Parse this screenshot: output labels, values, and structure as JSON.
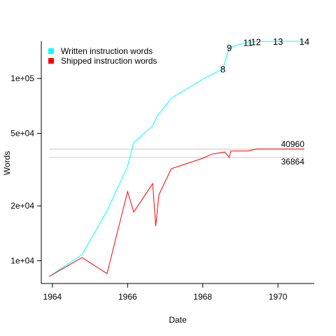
{
  "chart_data": {
    "type": "line",
    "title": "",
    "xlabel": "Date",
    "ylabel": "Words",
    "xlim": [
      "1963-09-15",
      "1970-12-20"
    ],
    "ylim": [
      7500,
      160000
    ],
    "yscale": "log",
    "x_ticks": [
      {
        "date": "1964-01-01",
        "label": "1964"
      },
      {
        "date": "1966-01-01",
        "label": "1966"
      },
      {
        "date": "1968-01-01",
        "label": "1968"
      },
      {
        "date": "1970-01-01",
        "label": "1970"
      }
    ],
    "y_ticks": [
      {
        "value": 10000,
        "label": "1e+04"
      },
      {
        "value": 20000,
        "label": "2e+04"
      },
      {
        "value": 50000,
        "label": "5e+04"
      },
      {
        "value": 100000,
        "label": "1e+05"
      }
    ],
    "grid": false,
    "legend": "top-left",
    "series": [
      {
        "name": "Written instruction words",
        "color": "#00ffff",
        "points": [
          {
            "x": "1963-12-01",
            "y": 8200
          },
          {
            "x": "1964-10-15",
            "y": 10800
          },
          {
            "x": "1965-06-15",
            "y": 18800
          },
          {
            "x": "1966-01-01",
            "y": 33000
          },
          {
            "x": "1966-03-01",
            "y": 44500
          },
          {
            "x": "1966-09-01",
            "y": 55000
          },
          {
            "x": "1966-10-15",
            "y": 62000
          },
          {
            "x": "1967-03-01",
            "y": 78000
          },
          {
            "x": "1968-01-15",
            "y": 100000
          },
          {
            "x": "1968-07-15",
            "y": 113000
          },
          {
            "x": "1968-09-15",
            "y": 148000
          },
          {
            "x": "1969-03-15",
            "y": 158000
          },
          {
            "x": "1969-06-01",
            "y": 159500
          },
          {
            "x": "1970-01-01",
            "y": 160000
          },
          {
            "x": "1970-09-15",
            "y": 160000
          }
        ]
      },
      {
        "name": "Shipped instruction words",
        "color": "#ff0000",
        "points": [
          {
            "x": "1963-12-01",
            "y": 8200
          },
          {
            "x": "1964-10-15",
            "y": 10400
          },
          {
            "x": "1965-06-15",
            "y": 8500
          },
          {
            "x": "1966-01-01",
            "y": 24000
          },
          {
            "x": "1966-03-01",
            "y": 18500
          },
          {
            "x": "1966-09-01",
            "y": 26500
          },
          {
            "x": "1966-10-01",
            "y": 15500
          },
          {
            "x": "1966-11-01",
            "y": 23000
          },
          {
            "x": "1967-03-01",
            "y": 32000
          },
          {
            "x": "1968-01-01",
            "y": 36500
          },
          {
            "x": "1968-04-01",
            "y": 38500
          },
          {
            "x": "1968-08-01",
            "y": 39500
          },
          {
            "x": "1968-09-15",
            "y": 37000
          },
          {
            "x": "1968-10-01",
            "y": 40000
          },
          {
            "x": "1969-03-15",
            "y": 40000
          },
          {
            "x": "1969-06-01",
            "y": 41000
          },
          {
            "x": "1970-01-01",
            "y": 41000
          },
          {
            "x": "1970-09-15",
            "y": 41000
          }
        ]
      }
    ],
    "reference_lines": [
      {
        "value": 40960,
        "label": "40960",
        "color": "#d3d3d3"
      },
      {
        "value": 36864,
        "label": "36864",
        "color": "#d3d3d3"
      }
    ],
    "annotations": [
      {
        "label": "8",
        "x": "1968-07-15",
        "y": 113000
      },
      {
        "label": "9",
        "x": "1968-09-15",
        "y": 148000
      },
      {
        "label": "11",
        "x": "1969-03-15",
        "y": 158000
      },
      {
        "label": "12",
        "x": "1969-06-01",
        "y": 159500
      },
      {
        "label": "13",
        "x": "1970-01-01",
        "y": 160000
      },
      {
        "label": "14",
        "x": "1970-09-15",
        "y": 160000
      }
    ]
  }
}
